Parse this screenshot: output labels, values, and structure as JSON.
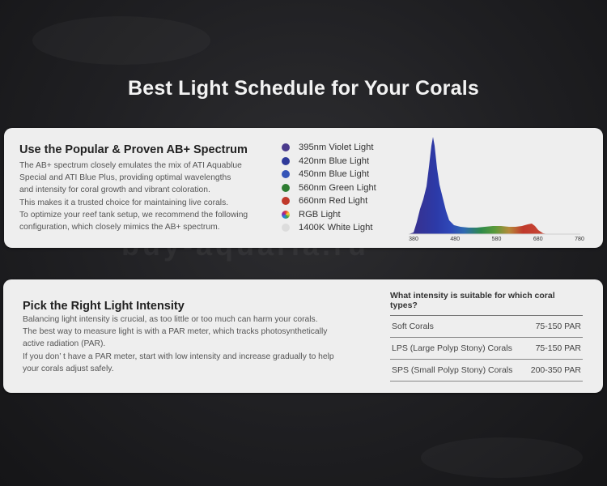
{
  "title": "Best Light Schedule for Your Corals",
  "watermark": "buy-aquaria.ru",
  "spectrum_section": {
    "heading": "Use the Popular & Proven AB+ Spectrum",
    "paragraph_lines": [
      "The AB+ spectrum closely emulates the mix of ATI Aquablue",
      "Special and ATI Blue Plus, providing optimal wavelengths",
      "and intensity for coral growth and vibrant coloration.",
      "This makes it a trusted choice for maintaining live corals.",
      "To optimize your reef tank setup, we recommend the following",
      "configuration, which closely mimics the AB+ spectrum."
    ],
    "legend": [
      {
        "label": "395nm Violet Light",
        "color": "#4a3a8c",
        "icon": "violet-dot"
      },
      {
        "label": "420nm Blue Light",
        "color": "#2f3a9a",
        "icon": "blue-dot"
      },
      {
        "label": "450nm Blue Light",
        "color": "#3555b8",
        "icon": "blue-dot"
      },
      {
        "label": "560nm Green Light",
        "color": "#2e7d32",
        "icon": "green-dot"
      },
      {
        "label": "660nm Red Light",
        "color": "#c0392b",
        "icon": "red-dot"
      },
      {
        "label": "RGB Light",
        "color": "rgb",
        "icon": "rgb-dot"
      },
      {
        "label": "1400K White Light",
        "color": "#dcdcdc",
        "icon": "white-dot"
      }
    ],
    "x_ticks": [
      "380",
      "480",
      "580",
      "680",
      "780"
    ],
    "x_range": [
      380,
      780
    ]
  },
  "intensity_section": {
    "heading": "Pick the Right Light Intensity",
    "paragraph_lines": [
      "Balancing light intensity is crucial, as too little or too much can harm your corals.",
      "The best way to measure light is with a PAR meter, which tracks photosynthetically",
      "active radiation (PAR).",
      "If you don’ t have a PAR meter, start with low intensity and increase gradually to help",
      "your corals adjust safely."
    ],
    "table": {
      "header": "What intensity is suitable for which coral types?",
      "rows": [
        {
          "coral": "Soft Corals",
          "par": "75-150 PAR"
        },
        {
          "coral": "LPS (Large Polyp Stony) Corals",
          "par": "75-150 PAR"
        },
        {
          "coral": "SPS (Small Polyp Stony) Corals",
          "par": "200-350 PAR"
        }
      ]
    }
  }
}
